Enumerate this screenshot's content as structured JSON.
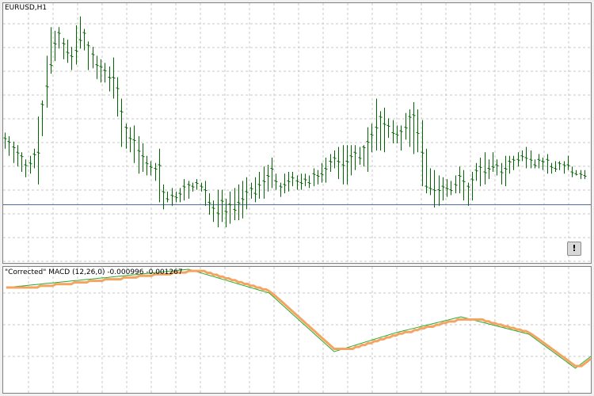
{
  "main_chart": {
    "symbol_label": "EURUSD,H1",
    "bar_color": "#006400",
    "horizontal_line_color": "#4a6fa5",
    "bars": [
      [
        74,
        68,
        77
      ],
      [
        72,
        64,
        75
      ],
      [
        69,
        60,
        72
      ],
      [
        66,
        58,
        70
      ],
      [
        64,
        55,
        66
      ],
      [
        59,
        52,
        62
      ],
      [
        60,
        54,
        64
      ],
      [
        65,
        57,
        68
      ],
      [
        66,
        48,
        86
      ],
      [
        93,
        75,
        95
      ],
      [
        103,
        91,
        120
      ],
      [
        115,
        110,
        136
      ],
      [
        127,
        117,
        134
      ],
      [
        133,
        124,
        136
      ],
      [
        127,
        118,
        130
      ],
      [
        122,
        116,
        129
      ],
      [
        120,
        112,
        125
      ],
      [
        123,
        115,
        137
      ],
      [
        129,
        124,
        142
      ],
      [
        133,
        123,
        135
      ],
      [
        126,
        112,
        128
      ],
      [
        121,
        113,
        125
      ],
      [
        115,
        107,
        120
      ],
      [
        114,
        105,
        118
      ],
      [
        112,
        105,
        116
      ],
      [
        108,
        100,
        114
      ],
      [
        108,
        96,
        119
      ],
      [
        102,
        86,
        108
      ],
      [
        89,
        69,
        96
      ],
      [
        80,
        68,
        82
      ],
      [
        74,
        66,
        80
      ],
      [
        73,
        60,
        81
      ],
      [
        67,
        54,
        75
      ],
      [
        64,
        55,
        71
      ],
      [
        60,
        53,
        64
      ],
      [
        58,
        53,
        61
      ],
      [
        57,
        50,
        60
      ],
      [
        59,
        38,
        68
      ],
      [
        44,
        34,
        48
      ],
      [
        40,
        38,
        44
      ],
      [
        42,
        36,
        46
      ],
      [
        41,
        38,
        44
      ],
      [
        43,
        38,
        46
      ],
      [
        47,
        39,
        51
      ],
      [
        48,
        40,
        50
      ],
      [
        47,
        44,
        49
      ],
      [
        49,
        45,
        51
      ],
      [
        47,
        44,
        49
      ],
      [
        45,
        36,
        50
      ],
      [
        38,
        31,
        43
      ],
      [
        35,
        27,
        39
      ],
      [
        32,
        24,
        45
      ],
      [
        39,
        27,
        45
      ],
      [
        33,
        24,
        40
      ],
      [
        37,
        26,
        44
      ],
      [
        34,
        28,
        46
      ],
      [
        38,
        28,
        48
      ],
      [
        40,
        29,
        50
      ],
      [
        44,
        34,
        52
      ],
      [
        46,
        40,
        49
      ],
      [
        43,
        38,
        52
      ],
      [
        48,
        40,
        55
      ],
      [
        50,
        40,
        58
      ],
      [
        53,
        44,
        59
      ],
      [
        57,
        46,
        63
      ],
      [
        50,
        45,
        54
      ],
      [
        47,
        41,
        49
      ],
      [
        48,
        43,
        54
      ],
      [
        50,
        44,
        55
      ],
      [
        52,
        47,
        55
      ],
      [
        50,
        45,
        53
      ],
      [
        49,
        45,
        54
      ],
      [
        51,
        47,
        54
      ],
      [
        49,
        46,
        53
      ],
      [
        54,
        47,
        57
      ],
      [
        53,
        48,
        56
      ],
      [
        54,
        49,
        60
      ],
      [
        57,
        49,
        63
      ],
      [
        61,
        55,
        65
      ],
      [
        63,
        57,
        67
      ],
      [
        61,
        51,
        69
      ],
      [
        59,
        48,
        70
      ],
      [
        61,
        48,
        70
      ],
      [
        64,
        53,
        70
      ],
      [
        66,
        56,
        70
      ],
      [
        63,
        59,
        69
      ],
      [
        69,
        58,
        70
      ],
      [
        72,
        55,
        80
      ],
      [
        76,
        66,
        82
      ],
      [
        80,
        67,
        96
      ],
      [
        86,
        67,
        89
      ],
      [
        82,
        66,
        91
      ],
      [
        81,
        74,
        85
      ],
      [
        77,
        71,
        84
      ],
      [
        76,
        71,
        81
      ],
      [
        78,
        67,
        81
      ],
      [
        80,
        73,
        88
      ],
      [
        86,
        69,
        90
      ],
      [
        87,
        65,
        94
      ],
      [
        77,
        66,
        90
      ],
      [
        66,
        47,
        84
      ],
      [
        47,
        43,
        68
      ],
      [
        46,
        42,
        57
      ],
      [
        45,
        35,
        56
      ],
      [
        45,
        36,
        53
      ],
      [
        47,
        39,
        52
      ],
      [
        46,
        41,
        51
      ],
      [
        45,
        42,
        50
      ],
      [
        48,
        43,
        53
      ],
      [
        53,
        43,
        58
      ],
      [
        50,
        39,
        56
      ],
      [
        47,
        36,
        49
      ],
      [
        51,
        39,
        55
      ],
      [
        56,
        50,
        60
      ],
      [
        58,
        47,
        63
      ],
      [
        55,
        48,
        66
      ],
      [
        57,
        51,
        62
      ],
      [
        58,
        55,
        66
      ],
      [
        59,
        53,
        62
      ],
      [
        55,
        48,
        60
      ],
      [
        57,
        47,
        64
      ],
      [
        61,
        54,
        64
      ],
      [
        62,
        56,
        64
      ],
      [
        62,
        58,
        66
      ],
      [
        64,
        61,
        67
      ],
      [
        63,
        57,
        69
      ],
      [
        62,
        57,
        67
      ],
      [
        59,
        57,
        62
      ],
      [
        62,
        57,
        65
      ],
      [
        61,
        56,
        63
      ],
      [
        62,
        54,
        65
      ],
      [
        58,
        54,
        60
      ],
      [
        57,
        55,
        61
      ],
      [
        60,
        56,
        61
      ],
      [
        59,
        54,
        61
      ],
      [
        59,
        56,
        64
      ],
      [
        55,
        52,
        58
      ],
      [
        54,
        53,
        56
      ],
      [
        54,
        51,
        56
      ],
      [
        53,
        51,
        56
      ]
    ],
    "segments": [
      {
        "from": 1,
        "to": 37,
        "y0": 1.17,
        "y1": 1.31
      },
      {
        "from": 37,
        "to": 60,
        "y0": 1.31,
        "y1": 1.4
      },
      {
        "from": 60,
        "to": 86,
        "y0": 1.4,
        "y1": 1.1
      },
      {
        "from": 86,
        "to": 107,
        "y0": 1.1,
        "y1": 0.36
      },
      {
        "from": 107,
        "to": 127,
        "y0": 0.36,
        "y1": 0.6
      },
      {
        "from": 127,
        "to": 148,
        "y0": 0.6,
        "y1": 0.8
      },
      {
        "from": 148,
        "to": 170,
        "y0": 0.8,
        "y1": 0.58
      },
      {
        "from": 170,
        "to": 185,
        "y0": 0.58,
        "y1": 0.15
      },
      {
        "from": 185,
        "to": 190,
        "y0": 0.15,
        "y1": 0.3
      }
    ]
  },
  "macd": {
    "label": "\"Corrected\" MACD (12,26,0) -0.000996 -0.001267",
    "thin_color": "#2ca82c",
    "thick_color": "#f4a460",
    "bull_color": "#3ec23e"
  },
  "warn_button_label": "!"
}
